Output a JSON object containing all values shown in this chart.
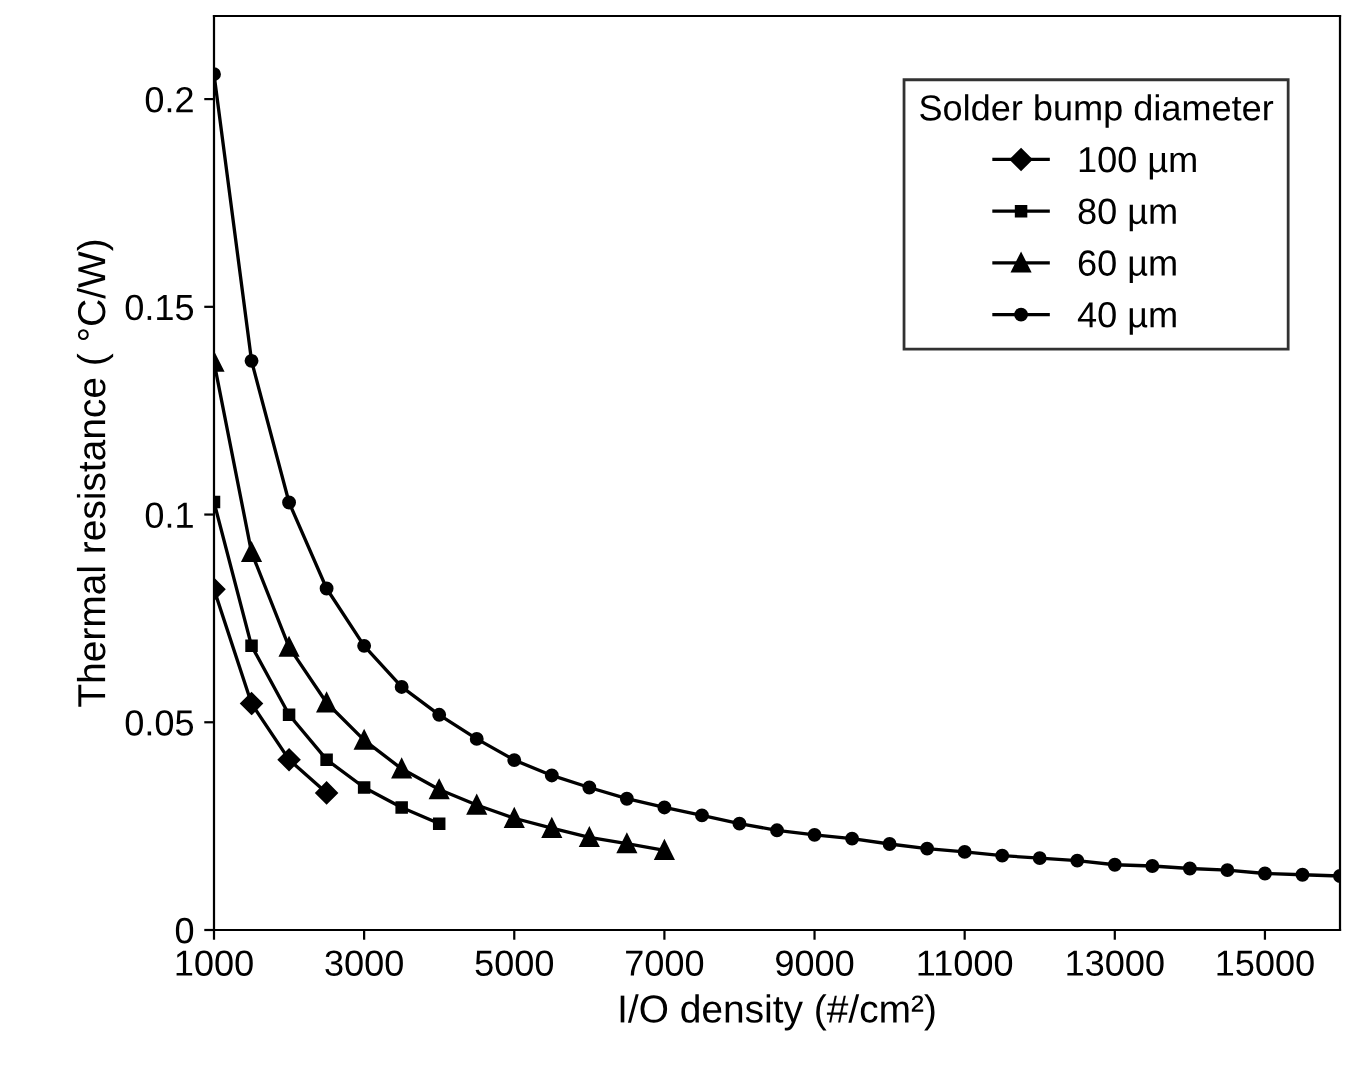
{
  "chart_data": {
    "type": "line",
    "xlabel": "I/O density (#/cm²)",
    "ylabel": "Thermal resistance ( °C/W)",
    "legend_title": "Solder bump diameter",
    "legend": "top right",
    "grid": false,
    "xlim": [
      1000,
      16000
    ],
    "xticks": [
      1000,
      3000,
      5000,
      7000,
      9000,
      11000,
      13000,
      15000
    ],
    "ylim": [
      0,
      0.22
    ],
    "yticks": [
      0,
      0.05,
      0.1,
      0.15,
      0.2
    ],
    "series": [
      {
        "name": "100 µm",
        "color": "#000000",
        "marker": "diamond",
        "x": [
          1000,
          1500,
          2000,
          2500
        ],
        "values": [
          0.082,
          0.0545,
          0.041,
          0.033
        ]
      },
      {
        "name": "80 µm",
        "color": "#000000",
        "marker": "square",
        "x": [
          1000,
          1500,
          2000,
          2500,
          3000,
          3500,
          4000
        ],
        "values": [
          0.103,
          0.0684,
          0.0518,
          0.041,
          0.0343,
          0.0295,
          0.0256
        ]
      },
      {
        "name": "60 µm",
        "color": "#000000",
        "marker": "triangle",
        "x": [
          1000,
          1500,
          2000,
          2500,
          3000,
          3500,
          4000,
          4500,
          5000,
          5500,
          6000,
          6500,
          7000
        ],
        "values": [
          0.1367,
          0.0909,
          0.0681,
          0.0547,
          0.0457,
          0.0388,
          0.0338,
          0.0301,
          0.0269,
          0.0245,
          0.0223,
          0.0208,
          0.0192
        ]
      },
      {
        "name": "40 µm",
        "color": "#000000",
        "marker": "circle",
        "x": [
          1000,
          1500,
          2000,
          2500,
          3000,
          3500,
          4000,
          4500,
          5000,
          5500,
          6000,
          6500,
          7000,
          7500,
          8000,
          8500,
          9000,
          9500,
          10000,
          10500,
          11000,
          11500,
          12000,
          12500,
          13000,
          13500,
          14000,
          14500,
          15000,
          15500,
          16000
        ],
        "values": [
          0.206,
          0.137,
          0.1029,
          0.0822,
          0.0684,
          0.0585,
          0.0518,
          0.046,
          0.0409,
          0.0372,
          0.0343,
          0.0316,
          0.0295,
          0.0276,
          0.0256,
          0.024,
          0.0229,
          0.022,
          0.0207,
          0.0196,
          0.0188,
          0.0179,
          0.0173,
          0.0167,
          0.0157,
          0.0154,
          0.0148,
          0.0144,
          0.0136,
          0.0133,
          0.013
        ]
      }
    ]
  }
}
